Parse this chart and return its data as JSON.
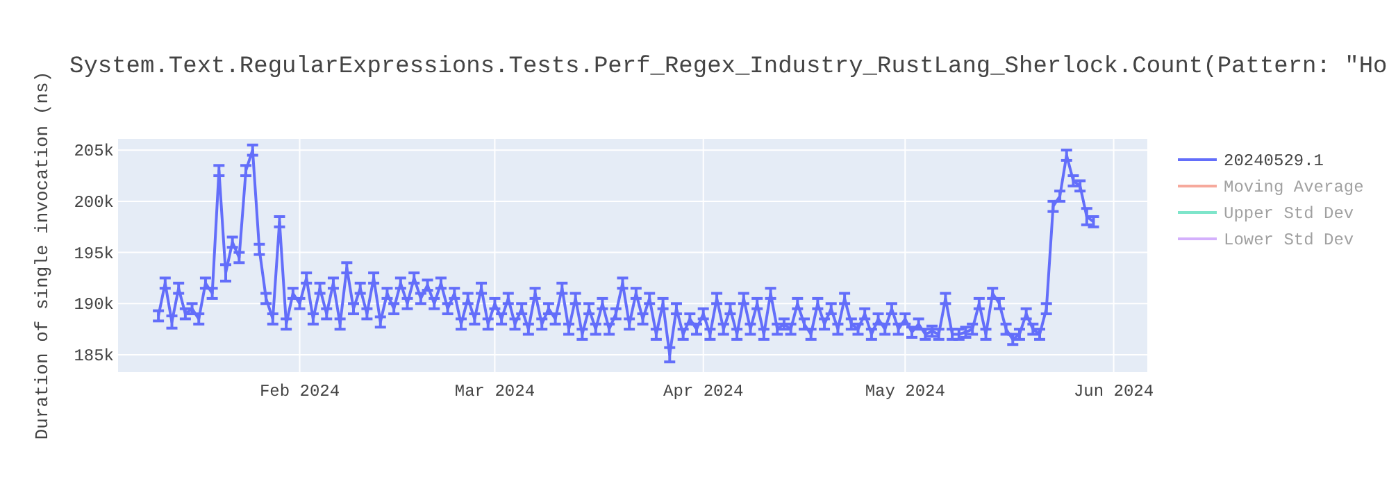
{
  "chart_data": {
    "type": "line",
    "title": "System.Text.RegularExpressions.Tests.Perf_Regex_Industry_RustLang_Sherlock.Count(Pattern: \"Ho",
    "ylabel": "Duration of single invocation (ns)",
    "x": [
      "2024-01-11",
      "2024-01-12",
      "2024-01-13",
      "2024-01-14",
      "2024-01-15",
      "2024-01-16",
      "2024-01-17",
      "2024-01-18",
      "2024-01-19",
      "2024-01-20",
      "2024-01-21",
      "2024-01-22",
      "2024-01-23",
      "2024-01-24",
      "2024-01-25",
      "2024-01-26",
      "2024-01-27",
      "2024-01-28",
      "2024-01-29",
      "2024-01-30",
      "2024-01-31",
      "2024-02-01",
      "2024-02-02",
      "2024-02-03",
      "2024-02-04",
      "2024-02-05",
      "2024-02-06",
      "2024-02-07",
      "2024-02-08",
      "2024-02-09",
      "2024-02-10",
      "2024-02-11",
      "2024-02-12",
      "2024-02-13",
      "2024-02-14",
      "2024-02-15",
      "2024-02-16",
      "2024-02-17",
      "2024-02-18",
      "2024-02-19",
      "2024-02-20",
      "2024-02-21",
      "2024-02-22",
      "2024-02-23",
      "2024-02-24",
      "2024-02-25",
      "2024-02-26",
      "2024-02-27",
      "2024-02-28",
      "2024-02-29",
      "2024-03-01",
      "2024-03-02",
      "2024-03-03",
      "2024-03-04",
      "2024-03-05",
      "2024-03-06",
      "2024-03-07",
      "2024-03-08",
      "2024-03-09",
      "2024-03-10",
      "2024-03-11",
      "2024-03-12",
      "2024-03-13",
      "2024-03-14",
      "2024-03-15",
      "2024-03-16",
      "2024-03-17",
      "2024-03-18",
      "2024-03-19",
      "2024-03-20",
      "2024-03-21",
      "2024-03-22",
      "2024-03-23",
      "2024-03-24",
      "2024-03-25",
      "2024-03-26",
      "2024-03-27",
      "2024-03-28",
      "2024-03-29",
      "2024-03-30",
      "2024-03-31",
      "2024-04-01",
      "2024-04-02",
      "2024-04-03",
      "2024-04-04",
      "2024-04-05",
      "2024-04-06",
      "2024-04-07",
      "2024-04-08",
      "2024-04-09",
      "2024-04-10",
      "2024-04-11",
      "2024-04-12",
      "2024-04-13",
      "2024-04-14",
      "2024-04-15",
      "2024-04-16",
      "2024-04-17",
      "2024-04-18",
      "2024-04-19",
      "2024-04-20",
      "2024-04-21",
      "2024-04-22",
      "2024-04-23",
      "2024-04-24",
      "2024-04-25",
      "2024-04-26",
      "2024-04-27",
      "2024-04-28",
      "2024-04-29",
      "2024-04-30",
      "2024-05-01",
      "2024-05-02",
      "2024-05-03",
      "2024-05-04",
      "2024-05-05",
      "2024-05-06",
      "2024-05-07",
      "2024-05-08",
      "2024-05-09",
      "2024-05-10",
      "2024-05-11",
      "2024-05-12",
      "2024-05-13",
      "2024-05-14",
      "2024-05-15",
      "2024-05-16",
      "2024-05-17",
      "2024-05-18",
      "2024-05-19",
      "2024-05-20",
      "2024-05-21",
      "2024-05-22",
      "2024-05-23",
      "2024-05-24",
      "2024-05-25",
      "2024-05-26",
      "2024-05-27",
      "2024-05-28",
      "2024-05-29"
    ],
    "series": [
      {
        "name": "20240529.1",
        "color": "#636efa",
        "values": [
          188800,
          192000,
          188200,
          191500,
          189000,
          189500,
          188500,
          192000,
          191000,
          203000,
          193000,
          196000,
          194500,
          203000,
          205000,
          195300,
          190500,
          188500,
          198000,
          188000,
          191000,
          190000,
          192500,
          188500,
          191500,
          189000,
          192000,
          188000,
          193500,
          189500,
          191500,
          189000,
          192500,
          188200,
          191000,
          189500,
          192000,
          190000,
          192500,
          190500,
          191800,
          190000,
          192000,
          189500,
          191000,
          188000,
          190500,
          188500,
          191500,
          188000,
          190000,
          188500,
          190500,
          188000,
          189500,
          187500,
          191000,
          188000,
          189500,
          188500,
          191500,
          187500,
          190500,
          187000,
          189500,
          187500,
          190000,
          187500,
          189000,
          192000,
          188000,
          191000,
          188500,
          190500,
          187000,
          190000,
          185000,
          189500,
          187000,
          188500,
          187500,
          189000,
          187000,
          190500,
          187500,
          189500,
          187000,
          190500,
          187500,
          190000,
          187000,
          191000,
          187500,
          188000,
          187500,
          190000,
          188000,
          187000,
          190000,
          188000,
          189500,
          187500,
          190500,
          188000,
          187500,
          189000,
          187000,
          188500,
          187500,
          189500,
          187500,
          188500,
          187200,
          188000,
          187000,
          187300,
          187000,
          190500,
          187000,
          187000,
          187200,
          187500,
          190000,
          187000,
          191000,
          190000,
          187500,
          186500,
          187000,
          189000,
          187500,
          187000,
          189500,
          199500,
          200500,
          204500,
          202000,
          201500,
          198500,
          198000
        ],
        "errors": [
          500,
          500,
          600,
          500,
          500,
          500,
          500,
          500,
          500,
          500,
          800,
          500,
          500,
          500,
          500,
          500,
          500,
          500,
          500,
          500,
          500,
          500,
          500,
          500,
          500,
          500,
          500,
          500,
          500,
          500,
          500,
          500,
          500,
          500,
          500,
          500,
          500,
          500,
          500,
          500,
          500,
          500,
          500,
          500,
          500,
          500,
          500,
          500,
          500,
          500,
          500,
          500,
          500,
          500,
          500,
          500,
          500,
          500,
          500,
          500,
          500,
          500,
          500,
          500,
          500,
          500,
          500,
          500,
          500,
          500,
          500,
          500,
          500,
          500,
          500,
          500,
          700,
          500,
          500,
          500,
          500,
          500,
          500,
          500,
          500,
          500,
          500,
          500,
          500,
          500,
          500,
          500,
          500,
          500,
          500,
          500,
          500,
          500,
          500,
          500,
          500,
          500,
          500,
          500,
          500,
          500,
          500,
          500,
          500,
          500,
          500,
          500,
          500,
          500,
          500,
          500,
          500,
          500,
          500,
          500,
          500,
          500,
          500,
          500,
          500,
          500,
          500,
          500,
          500,
          500,
          500,
          500,
          500,
          500,
          500,
          500,
          500,
          500,
          800,
          500
        ]
      },
      {
        "name": "Moving Average",
        "color": "#ef553b",
        "values": [
          null,
          null,
          null,
          null,
          null,
          null,
          null,
          null,
          null,
          null,
          null,
          null,
          null,
          null,
          null,
          null,
          null,
          null,
          null,
          null,
          null,
          null,
          null,
          null,
          null,
          null,
          null,
          null,
          null,
          null,
          null,
          null,
          null,
          null,
          null,
          null,
          null,
          null,
          null,
          null,
          null,
          null,
          null,
          null,
          null,
          null,
          null,
          null,
          null,
          null,
          null,
          null,
          null,
          null,
          null,
          null,
          null,
          null,
          null,
          null,
          null,
          null,
          null,
          null,
          null,
          null,
          null,
          null,
          null,
          null,
          null,
          null,
          null,
          null,
          null,
          null,
          null,
          null,
          null,
          null,
          null,
          null,
          null,
          null,
          null,
          null,
          null,
          null,
          null,
          null,
          null,
          null,
          null,
          null,
          null,
          null,
          null,
          null,
          null,
          null,
          null,
          null,
          null,
          null,
          null,
          null,
          null,
          null,
          null,
          null,
          null,
          null,
          null,
          null,
          null,
          null,
          null,
          null,
          null,
          null,
          null,
          null,
          null,
          null,
          null,
          null,
          null,
          null,
          null,
          null,
          null,
          null,
          null,
          null,
          null,
          null,
          null,
          null,
          null,
          null
        ]
      },
      {
        "name": "Upper Std Dev",
        "color": "#00cc96",
        "values": [
          null,
          null,
          null,
          null,
          null,
          null,
          null,
          null,
          null,
          null,
          null,
          null,
          null,
          null,
          null,
          null,
          null,
          null,
          null,
          null,
          null,
          null,
          null,
          null,
          null,
          null,
          null,
          null,
          null,
          null,
          null,
          null,
          null,
          null,
          null,
          null,
          null,
          null,
          null,
          null,
          null,
          null,
          null,
          null,
          null,
          null,
          null,
          null,
          null,
          null,
          null,
          null,
          null,
          null,
          null,
          null,
          null,
          null,
          null,
          null,
          null,
          null,
          null,
          null,
          null,
          null,
          null,
          null,
          null,
          null,
          null,
          null,
          null,
          null,
          null,
          null,
          null,
          null,
          null,
          null,
          null,
          null,
          null,
          null,
          null,
          null,
          null,
          null,
          null,
          null,
          null,
          null,
          null,
          null,
          null,
          null,
          null,
          null,
          null,
          null,
          null,
          null,
          null,
          null,
          null,
          null,
          null,
          null,
          null,
          null,
          null,
          null,
          null,
          null,
          null,
          null,
          null,
          null,
          null,
          null,
          null,
          null,
          null,
          null,
          null,
          null,
          null,
          null,
          null,
          null,
          null,
          null,
          null,
          null,
          null,
          null,
          null,
          null,
          null,
          null
        ]
      },
      {
        "name": "Lower Std Dev",
        "color": "#ab63fa",
        "values": [
          null,
          null,
          null,
          null,
          null,
          null,
          null,
          null,
          null,
          null,
          null,
          null,
          null,
          null,
          null,
          null,
          null,
          null,
          null,
          null,
          null,
          null,
          null,
          null,
          null,
          null,
          null,
          null,
          null,
          null,
          null,
          null,
          null,
          null,
          null,
          null,
          null,
          null,
          null,
          null,
          null,
          null,
          null,
          null,
          null,
          null,
          null,
          null,
          null,
          null,
          null,
          null,
          null,
          null,
          null,
          null,
          null,
          null,
          null,
          null,
          null,
          null,
          null,
          null,
          null,
          null,
          null,
          null,
          null,
          null,
          null,
          null,
          null,
          null,
          null,
          null,
          null,
          null,
          null,
          null,
          null,
          null,
          null,
          null,
          null,
          null,
          null,
          null,
          null,
          null,
          null,
          null,
          null,
          null,
          null,
          null,
          null,
          null,
          null,
          null,
          null,
          null,
          null,
          null,
          null,
          null,
          null,
          null,
          null,
          null,
          null,
          null,
          null,
          null,
          null,
          null,
          null,
          null,
          null,
          null,
          null,
          null,
          null,
          null,
          null,
          null,
          null,
          null,
          null,
          null,
          null,
          null,
          null,
          null,
          null,
          null,
          null,
          null,
          null,
          null
        ]
      }
    ],
    "xlim": [
      "2024-01-05",
      "2024-06-06"
    ],
    "xticks": [
      {
        "value": "2024-02-01",
        "label": "Feb 2024"
      },
      {
        "value": "2024-03-01",
        "label": "Mar 2024"
      },
      {
        "value": "2024-04-01",
        "label": "Apr 2024"
      },
      {
        "value": "2024-05-01",
        "label": "May 2024"
      },
      {
        "value": "2024-06-01",
        "label": "Jun 2024"
      }
    ],
    "ylim": [
      183300,
      206100
    ],
    "yticks": [
      {
        "value": 185000,
        "label": "185k"
      },
      {
        "value": 190000,
        "label": "190k"
      },
      {
        "value": 195000,
        "label": "195k"
      },
      {
        "value": 200000,
        "label": "200k"
      },
      {
        "value": 205000,
        "label": "205k"
      }
    ],
    "grid": true,
    "legend": "right",
    "line_style": "solid"
  }
}
